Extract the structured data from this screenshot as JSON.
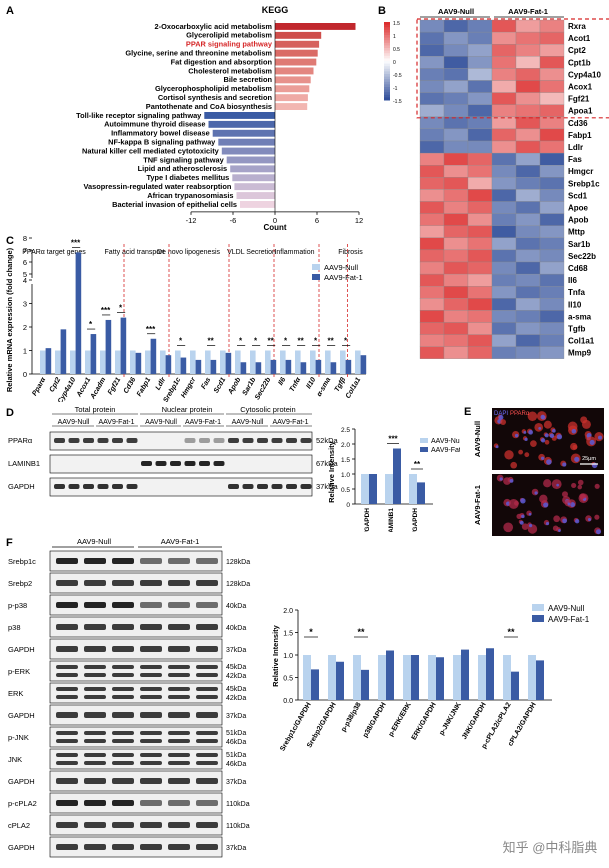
{
  "panel_labels": {
    "a": "A",
    "b": "B",
    "c": "C",
    "d": "D",
    "e": "E",
    "f": "F"
  },
  "kegg": {
    "title": "KEGG",
    "xlabel": "Count",
    "ticks": [
      "-12",
      "-6",
      "0",
      "6",
      "12"
    ],
    "highlight_color": "#d62728"
  },
  "chart_data": [
    {
      "type": "bar",
      "title": "KEGG",
      "xlabel": "Count",
      "xlim": [
        -12,
        12
      ],
      "categories": [
        "2-Oxocarboxylic acid metabolism",
        "Glycerolipid metabolism",
        "PPAR signaling pathway",
        "Glycine, serine and threonine metabolism",
        "Fat digestion and absorption",
        "Cholesterol metabolism",
        "Bile secretion",
        "Glycerophospholipid metabolism",
        "Cortisol synthesis and secretion",
        "Pantothenate and CoA biosynthesis",
        "Toll-like receptor signaling pathway",
        "Autoimmune thyroid disease",
        "Inflammatory bowel disease",
        "NF-kappa B signaling pathway",
        "Natural killer cell mediated cytotoxicity",
        "TNF signaling pathway",
        "Lipid and atherosclerosis",
        "Type I diabetes mellitus",
        "Vasopressin-regulated water reabsorption",
        "African trypanosomiasis",
        "Bacterial invasion of epithelial cells"
      ],
      "values": [
        11.5,
        6.6,
        6.3,
        6.1,
        5.9,
        5.5,
        5.1,
        4.9,
        4.7,
        4.6,
        -10.1,
        -9.5,
        -8.9,
        -8.1,
        -7.6,
        -6.9,
        -6.4,
        -6.1,
        -5.8,
        -5.5,
        -5.0
      ]
    },
    {
      "type": "heatmap",
      "column_groups": [
        "AAV9-Null",
        "AAV9-Fat-1"
      ],
      "genes": [
        "Rxra",
        "Acot1",
        "Cpt2",
        "Cpt1b",
        "Cyp4a10",
        "Acox1",
        "Fgf21",
        "Apoa1",
        "Cd36",
        "Fabp1",
        "Ldlr",
        "Fas",
        "Hmgcr",
        "Srebp1c",
        "Scd1",
        "Apoe",
        "Apob",
        "Mttp",
        "Sar1b",
        "Sec22b",
        "Cd68",
        "Il6",
        "Tnfa",
        "Il10",
        "a-sma",
        "Tgfb",
        "Col1a1",
        "Mmp9"
      ],
      "scale_ticks": [
        "1.5",
        "1",
        "0.5",
        "0",
        "-0.5",
        "-1",
        "-1.5"
      ],
      "values": [
        [
          -1.0,
          -1.3,
          -1.1,
          1.2,
          0.7,
          0.9
        ],
        [
          -1.2,
          -0.9,
          -1.1,
          0.8,
          1.0,
          1.1
        ],
        [
          -1.3,
          -1.0,
          -0.8,
          1.1,
          0.9,
          0.7
        ],
        [
          -0.9,
          -1.4,
          -0.9,
          1.0,
          0.5,
          1.2
        ],
        [
          -1.1,
          -1.2,
          -0.6,
          0.9,
          1.1,
          0.8
        ],
        [
          -1.0,
          -0.8,
          -1.2,
          0.6,
          1.3,
          1.0
        ],
        [
          -1.2,
          -1.1,
          -0.9,
          1.2,
          0.8,
          0.5
        ],
        [
          -0.7,
          -1.0,
          -1.3,
          0.9,
          1.0,
          1.1
        ],
        [
          -1.0,
          -1.2,
          -1.1,
          0.7,
          1.2,
          0.9
        ],
        [
          -1.1,
          -0.9,
          -1.3,
          1.1,
          0.8,
          1.3
        ],
        [
          -1.3,
          -1.0,
          -1.0,
          0.8,
          1.2,
          1.0
        ],
        [
          0.9,
          1.3,
          1.1,
          -1.2,
          -0.8,
          -1.4
        ],
        [
          1.2,
          0.8,
          1.0,
          -1.0,
          -1.3,
          -0.9
        ],
        [
          1.1,
          1.2,
          0.6,
          -0.9,
          -1.1,
          -1.2
        ],
        [
          0.8,
          1.0,
          1.3,
          -1.3,
          -0.7,
          -1.0
        ],
        [
          1.2,
          0.9,
          1.1,
          -1.0,
          -1.2,
          -0.8
        ],
        [
          1.0,
          1.3,
          0.8,
          -1.1,
          -0.9,
          -1.3
        ],
        [
          0.7,
          1.1,
          1.2,
          -1.4,
          -1.0,
          -0.9
        ],
        [
          1.3,
          0.8,
          1.0,
          -0.8,
          -1.2,
          -1.1
        ],
        [
          1.1,
          1.0,
          1.2,
          -1.2,
          -0.9,
          -1.0
        ],
        [
          0.9,
          1.2,
          1.1,
          -1.0,
          -1.3,
          -0.8
        ],
        [
          1.2,
          0.9,
          0.7,
          -1.1,
          -1.0,
          -1.2
        ],
        [
          1.0,
          1.3,
          1.0,
          -0.9,
          -1.2,
          -1.1
        ],
        [
          0.8,
          1.1,
          1.3,
          -1.3,
          -0.8,
          -1.0
        ],
        [
          1.3,
          0.9,
          1.0,
          -1.0,
          -1.1,
          -1.3
        ],
        [
          1.1,
          1.2,
          0.8,
          -1.2,
          -0.9,
          -1.0
        ],
        [
          0.9,
          1.0,
          1.2,
          -0.8,
          -1.3,
          -1.1
        ],
        [
          1.2,
          0.8,
          1.1,
          -1.1,
          -1.0,
          -0.9
        ]
      ]
    },
    {
      "type": "bar",
      "ylabel": "Relative mRNA expression (fold change)",
      "ylim": [
        0,
        8
      ],
      "y_break": [
        4,
        5
      ],
      "series": [
        {
          "name": "AAV9-Null",
          "color": "#b9d3ee"
        },
        {
          "name": "AAV9-Fat-1",
          "color": "#3a5ba4"
        }
      ],
      "groups": [
        "PPARα target genes",
        "Fatty acid transport",
        "De novo lipogenesis",
        "VLDL Secretion",
        "Inflammation",
        "Fibrosis"
      ],
      "categories": [
        "Pparα",
        "Cpt2",
        "Cyp4a10",
        "Acox1",
        "Acadm",
        "Fgf21",
        "Cd36",
        "Fabp1",
        "Ldlr",
        "Srebp1c",
        "Hmgcr",
        "Fas",
        "Scd1",
        "Apob",
        "Sar1b",
        "Sec22b",
        "Il6",
        "Tnfα",
        "Il10",
        "α-sma",
        "Tgfβ",
        "Col1a1"
      ],
      "null_values": [
        1.0,
        1.0,
        1.0,
        1.0,
        1.0,
        1.0,
        1.0,
        1.0,
        1.0,
        1.0,
        1.0,
        1.0,
        1.0,
        1.0,
        1.0,
        1.0,
        1.0,
        1.0,
        1.0,
        1.0,
        1.0,
        1.0
      ],
      "fat1_values": [
        1.1,
        1.9,
        6.8,
        1.7,
        2.3,
        2.4,
        0.9,
        1.5,
        0.8,
        0.7,
        0.6,
        0.6,
        0.9,
        0.5,
        0.5,
        0.6,
        0.6,
        0.5,
        0.6,
        0.5,
        0.6,
        0.8
      ],
      "significance": [
        "",
        "",
        "***",
        "*",
        "***",
        "*",
        "",
        "***",
        "",
        "*",
        "",
        "**",
        "",
        "*",
        "*",
        "**",
        "*",
        "**",
        "*",
        "**",
        "*",
        ""
      ]
    },
    {
      "type": "bar",
      "ylabel": "Relative Intensity",
      "ylim": [
        0,
        2.5
      ],
      "yticks": [
        "0",
        "0.5",
        "1.0",
        "1.5",
        "2.0",
        "2.5"
      ],
      "series": [
        {
          "name": "AAV9-Null",
          "color": "#b9d3ee"
        },
        {
          "name": "AAV9-Fat-1",
          "color": "#3a5ba4"
        }
      ],
      "categories": [
        "PPARα/GAPDH",
        "n-PPARα/LAMINB1",
        "c-PPARα/GAPDH"
      ],
      "null_values": [
        1.0,
        1.0,
        1.0
      ],
      "fat1_values": [
        1.0,
        1.85,
        0.72
      ],
      "significance": [
        "",
        "***",
        "**"
      ]
    },
    {
      "type": "bar",
      "ylabel": "Relative Intensity",
      "ylim": [
        0,
        2.0
      ],
      "yticks": [
        "0.0",
        "0.5",
        "1.0",
        "1.5",
        "2.0"
      ],
      "series": [
        {
          "name": "AAV9-Null",
          "color": "#b9d3ee"
        },
        {
          "name": "AAV9-Fat-1",
          "color": "#3a5ba4"
        }
      ],
      "categories": [
        "Srebp1c/GAPDH",
        "Srebp2/GAPDH",
        "p-p38/p38",
        "p38/GAPDH",
        "p-ERK/ERK",
        "ERK/GAPDH",
        "p-JNK/JNK",
        "JNK/GAPDH",
        "p-cPLA2/cPLA2",
        "cPLA2/GAPDH"
      ],
      "null_values": [
        1.0,
        1.0,
        1.0,
        1.0,
        1.0,
        1.0,
        1.0,
        1.0,
        1.0,
        1.0
      ],
      "fat1_values": [
        0.68,
        0.85,
        0.67,
        1.1,
        1.0,
        0.95,
        1.12,
        1.15,
        0.63,
        0.88
      ],
      "significance": [
        "*",
        "",
        "**",
        "",
        "",
        "",
        "",
        "",
        "**",
        ""
      ]
    }
  ],
  "panel_d": {
    "header_total": "Total protein",
    "header_nuclear": "Nuclear protein",
    "header_cyto": "Cytosolic protein",
    "group_null": "AAV9-Null",
    "group_fat": "AAV9-Fat-1",
    "rows": [
      {
        "label": "PPARα",
        "kda": "52kDa"
      },
      {
        "label": "LAMINB1",
        "kda": "67kDa"
      },
      {
        "label": "GAPDH",
        "kda": "37kDa"
      }
    ]
  },
  "panel_e": {
    "stain_dapi": "DAPI",
    "stain_ppar": "PPARα",
    "row_null": "AAV9-Null",
    "row_fat": "AAV9-Fat-1",
    "scale_bar": "25μm"
  },
  "panel_f": {
    "group_null": "AAV9-Null",
    "group_fat": "AAV9-Fat-1",
    "rows": [
      {
        "label": "Srebp1c",
        "kda": "128kDa"
      },
      {
        "label": "Srebp2",
        "kda": "128kDa"
      },
      {
        "label": "p-p38",
        "kda": "40kDa"
      },
      {
        "label": "p38",
        "kda": "40kDa"
      },
      {
        "label": "GAPDH",
        "kda": "37kDa"
      },
      {
        "label": "p-ERK",
        "kda": "45kDa",
        "kda2": "42kDa"
      },
      {
        "label": "ERK",
        "kda": "45kDa",
        "kda2": "42kDa"
      },
      {
        "label": "GAPDH",
        "kda": "37kDa"
      },
      {
        "label": "p-JNK",
        "kda": "51kDa",
        "kda2": "46kDa"
      },
      {
        "label": "JNK",
        "kda": "51kDa",
        "kda2": "46kDa"
      },
      {
        "label": "GAPDH",
        "kda": "37kDa"
      },
      {
        "label": "p-cPLA2",
        "kda": "110kDa"
      },
      {
        "label": "cPLA2",
        "kda": "110kDa"
      },
      {
        "label": "GAPDH",
        "kda": "37kDa"
      }
    ]
  },
  "watermark": "知乎 @中科脂典"
}
